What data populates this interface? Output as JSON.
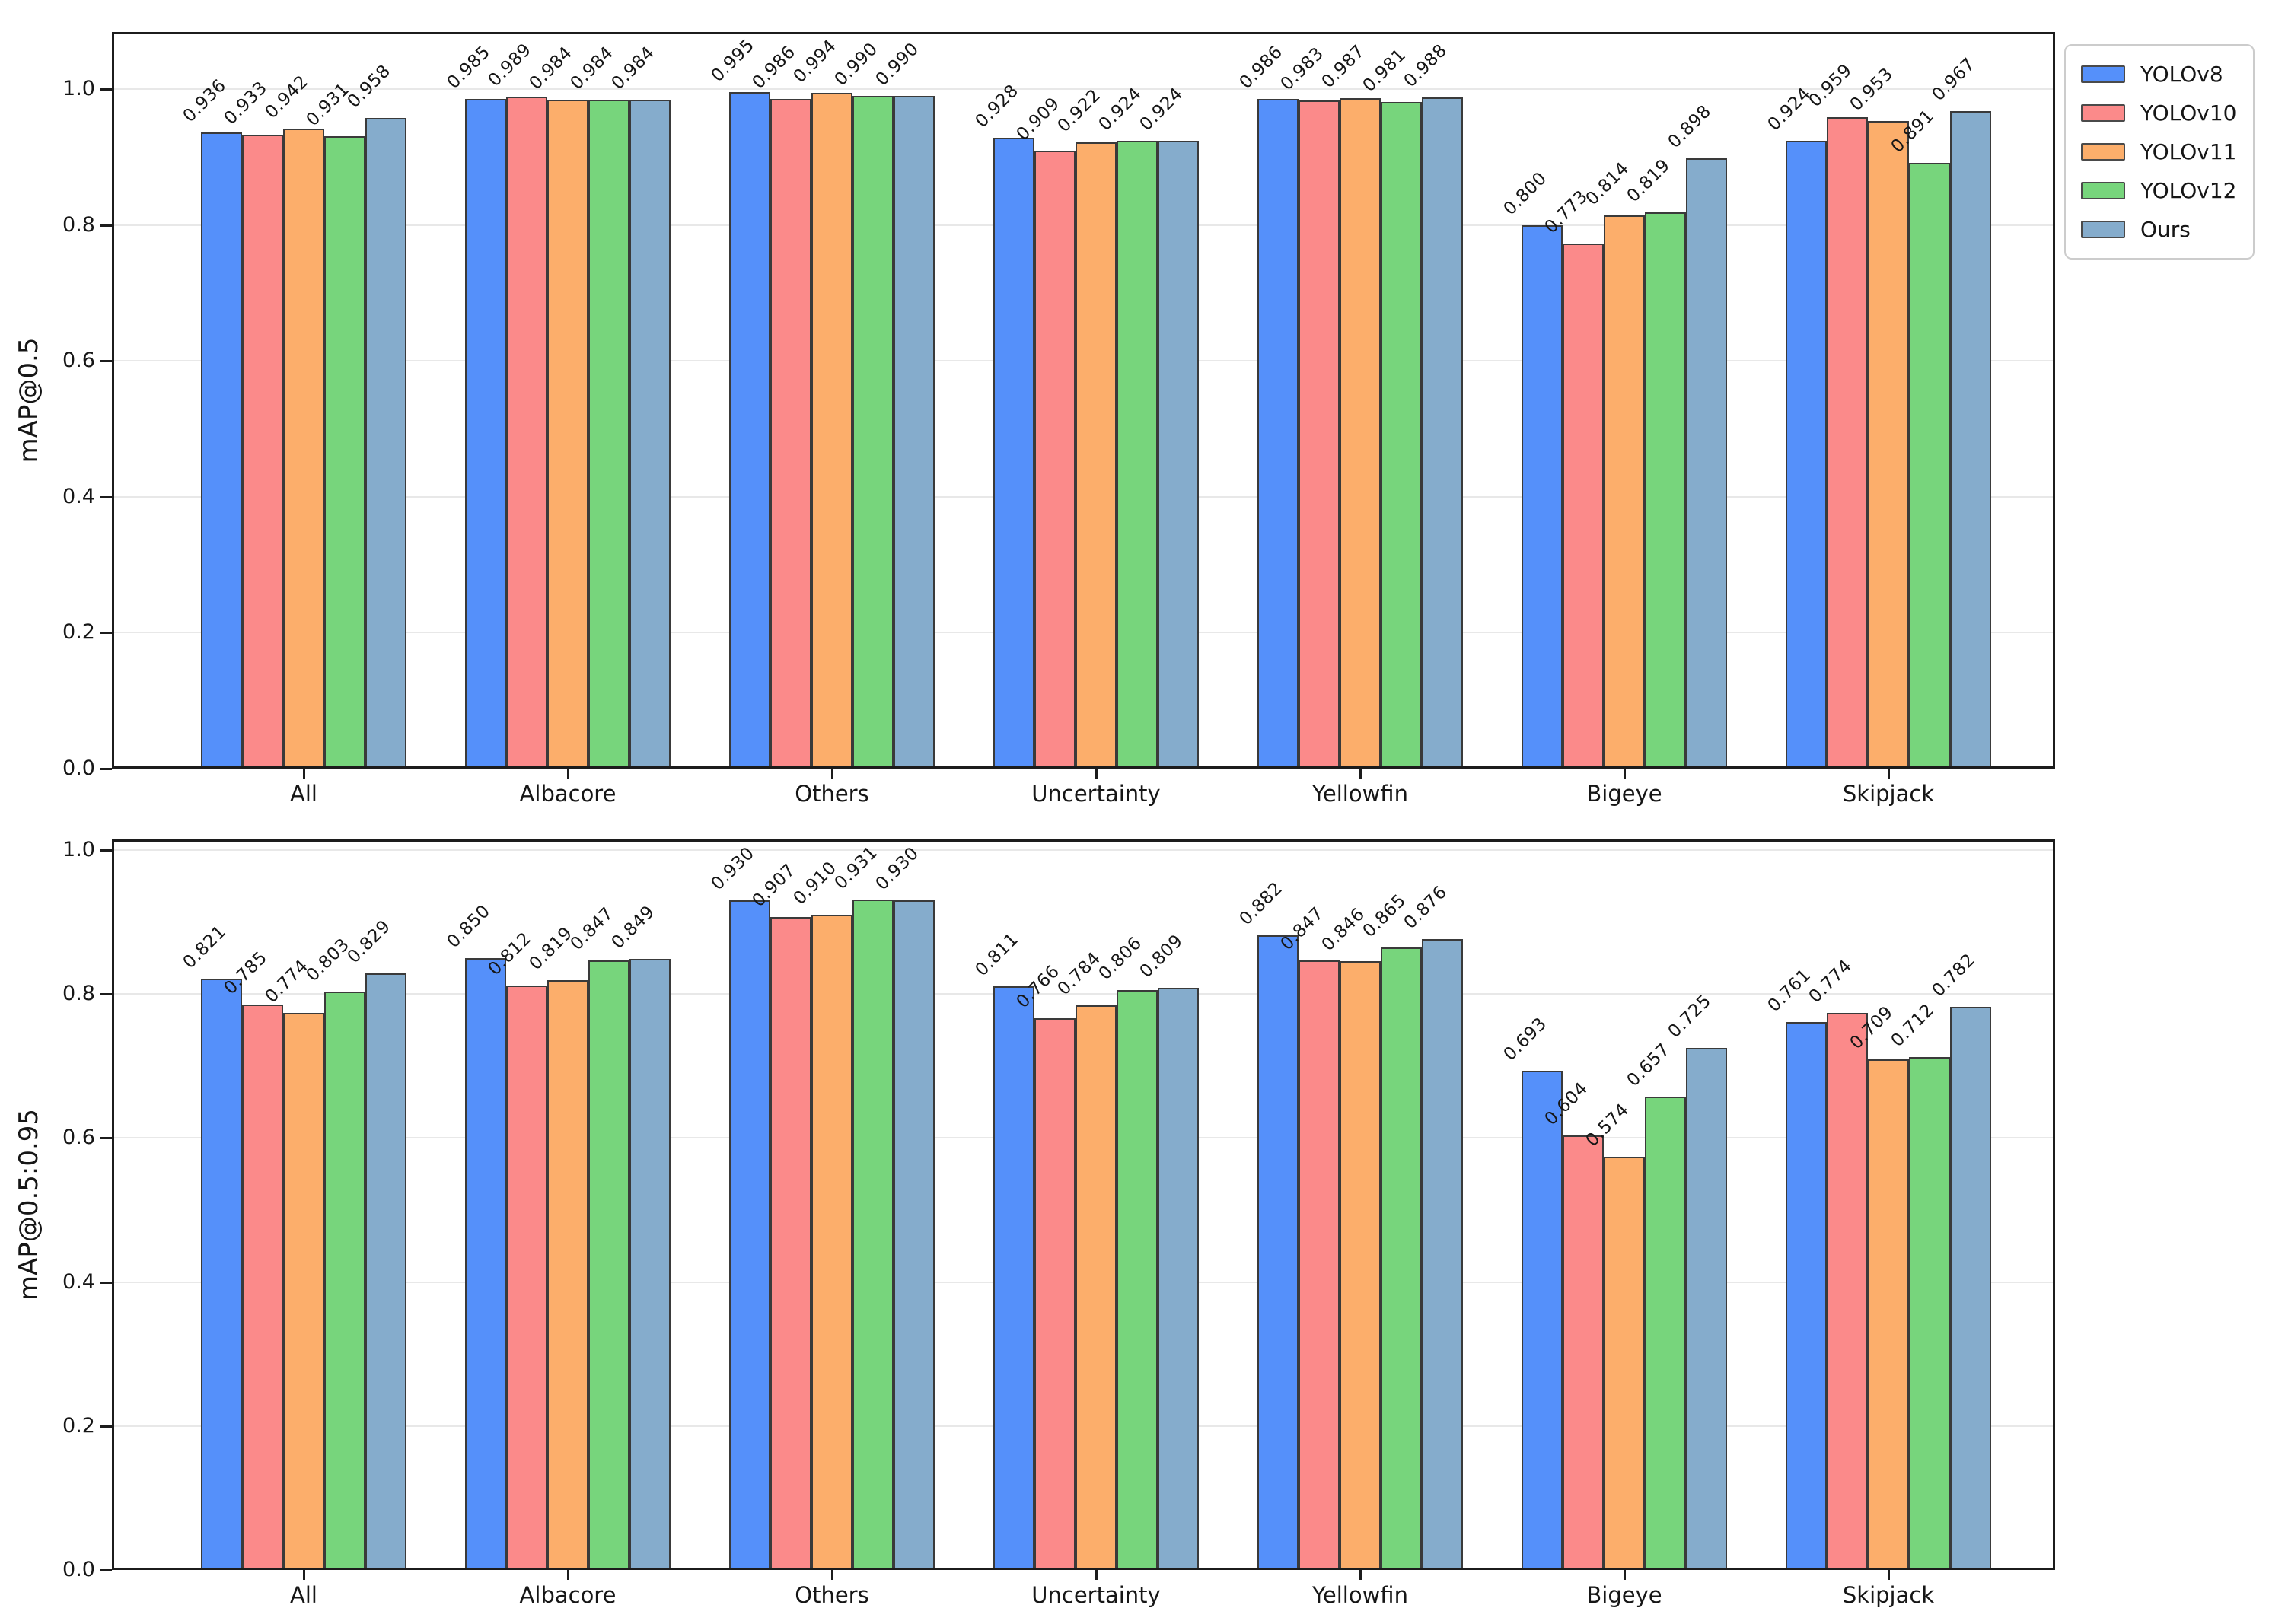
{
  "chart_data": [
    {
      "type": "bar",
      "title": "",
      "xlabel": "",
      "ylabel": "mAP@0.5",
      "ylim": [
        0,
        1.086
      ],
      "yticks": [
        0,
        0.2,
        0.4,
        0.6,
        0.8,
        1.0
      ],
      "grid": "horizontal",
      "legend_position": "upper-right-outside",
      "bar_label_rotation_deg": 45,
      "categories": [
        "All",
        "Albacore",
        "Others",
        "Uncertainty",
        "Yellowfin",
        "Bigeye",
        "Skipjack"
      ],
      "series": [
        {
          "name": "YOLOv8",
          "color": "#5590fa",
          "values": [
            0.936,
            0.985,
            0.995,
            0.928,
            0.986,
            0.8,
            0.924
          ]
        },
        {
          "name": "YOLOv10",
          "color": "#fb8a8a",
          "values": [
            0.933,
            0.989,
            0.986,
            0.909,
            0.983,
            0.773,
            0.959
          ]
        },
        {
          "name": "YOLOv11",
          "color": "#fcae6b",
          "values": [
            0.942,
            0.984,
            0.994,
            0.922,
            0.987,
            0.814,
            0.953
          ]
        },
        {
          "name": "YOLOv12",
          "color": "#77d57c",
          "values": [
            0.931,
            0.984,
            0.99,
            0.924,
            0.981,
            0.819,
            0.891
          ]
        },
        {
          "name": "Ours",
          "color": "#85accc",
          "values": [
            0.958,
            0.984,
            0.99,
            0.924,
            0.988,
            0.898,
            0.967
          ]
        }
      ]
    },
    {
      "type": "bar",
      "title": "",
      "xlabel": "",
      "ylabel": "mAP@0.5:0.95",
      "ylim": [
        0,
        1.015
      ],
      "yticks": [
        0,
        0.2,
        0.4,
        0.6,
        0.8,
        1.0
      ],
      "grid": "horizontal",
      "legend_position": "none",
      "bar_label_rotation_deg": 45,
      "categories": [
        "All",
        "Albacore",
        "Others",
        "Uncertainty",
        "Yellowfin",
        "Bigeye",
        "Skipjack"
      ],
      "series": [
        {
          "name": "YOLOv8",
          "color": "#5590fa",
          "values": [
            0.821,
            0.85,
            0.93,
            0.811,
            0.882,
            0.693,
            0.761
          ]
        },
        {
          "name": "YOLOv10",
          "color": "#fb8a8a",
          "values": [
            0.785,
            0.812,
            0.907,
            0.766,
            0.847,
            0.604,
            0.774
          ]
        },
        {
          "name": "YOLOv11",
          "color": "#fcae6b",
          "values": [
            0.774,
            0.819,
            0.91,
            0.784,
            0.846,
            0.574,
            0.709
          ]
        },
        {
          "name": "YOLOv12",
          "color": "#77d57c",
          "values": [
            0.803,
            0.847,
            0.931,
            0.806,
            0.865,
            0.657,
            0.712
          ]
        },
        {
          "name": "Ours",
          "color": "#85accc",
          "values": [
            0.829,
            0.849,
            0.93,
            0.809,
            0.876,
            0.725,
            0.782
          ]
        }
      ]
    }
  ],
  "legend": {
    "items": [
      {
        "label": "YOLOv8",
        "color": "#5590fa"
      },
      {
        "label": "YOLOv10",
        "color": "#fb8a8a"
      },
      {
        "label": "YOLOv11",
        "color": "#fcae6b"
      },
      {
        "label": "YOLOv12",
        "color": "#77d57c"
      },
      {
        "label": "Ours",
        "color": "#85accc"
      }
    ]
  },
  "style": {
    "bar_edge_color": "#3a3a3a",
    "grid_color": "#e8e8e8",
    "spine_color": "#1c1c1c",
    "text_color": "#161616",
    "legend_border_color": "#cccccc",
    "background": "#ffffff"
  }
}
